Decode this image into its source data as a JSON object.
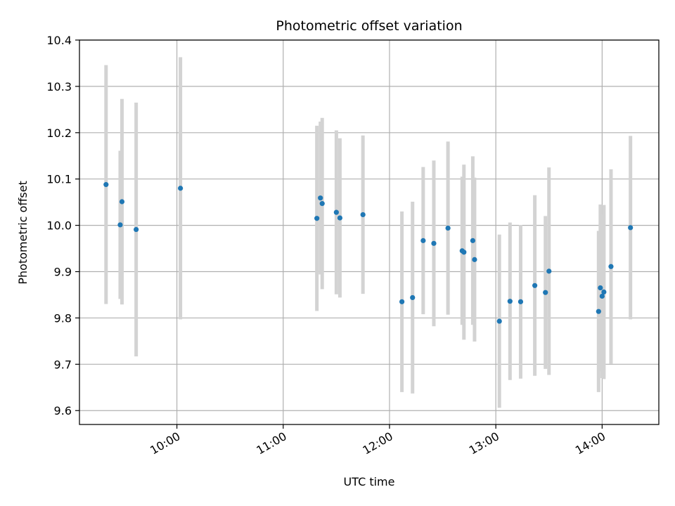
{
  "chart_data": {
    "type": "scatter",
    "title": "Photometric offset variation",
    "xlabel": "UTC time",
    "ylabel": "Photometric offset",
    "x_ticks": [
      "10:00",
      "11:00",
      "12:00",
      "13:00",
      "14:00"
    ],
    "y_ticks": [
      "9.6",
      "9.7",
      "9.8",
      "9.9",
      "10.0",
      "10.1",
      "10.2",
      "10.3",
      "10.4"
    ],
    "xlim": [
      "09:05",
      "14:32"
    ],
    "ylim": [
      9.57,
      10.4
    ],
    "grid": true,
    "colors": {
      "point": "#1f77b4",
      "errorbar": "#d3d3d3",
      "grid": "#b0b0b0"
    },
    "series": [
      {
        "points": [
          {
            "t": "09:20",
            "y": 10.088,
            "err": 0.258
          },
          {
            "t": "09:28",
            "y": 10.001,
            "err": 0.16
          },
          {
            "t": "09:29",
            "y": 10.051,
            "err": 0.222
          },
          {
            "t": "09:37",
            "y": 9.991,
            "err": 0.274
          },
          {
            "t": "10:02",
            "y": 10.08,
            "err": 0.283
          },
          {
            "t": "11:19",
            "y": 10.015,
            "err": 0.2
          },
          {
            "t": "11:21",
            "y": 10.059,
            "err": 0.165
          },
          {
            "t": "11:22",
            "y": 10.047,
            "err": 0.185
          },
          {
            "t": "11:30",
            "y": 10.028,
            "err": 0.177
          },
          {
            "t": "11:32",
            "y": 10.016,
            "err": 0.172
          },
          {
            "t": "11:45",
            "y": 10.023,
            "err": 0.171
          },
          {
            "t": "12:07",
            "y": 9.835,
            "err": 0.195
          },
          {
            "t": "12:13",
            "y": 9.844,
            "err": 0.207
          },
          {
            "t": "12:19",
            "y": 9.967,
            "err": 0.159
          },
          {
            "t": "12:25",
            "y": 9.961,
            "err": 0.179
          },
          {
            "t": "12:33",
            "y": 9.994,
            "err": 0.187
          },
          {
            "t": "12:41",
            "y": 9.945,
            "err": 0.16
          },
          {
            "t": "12:42",
            "y": 9.942,
            "err": 0.189
          },
          {
            "t": "12:47",
            "y": 9.967,
            "err": 0.182
          },
          {
            "t": "12:48",
            "y": 9.926,
            "err": 0.177
          },
          {
            "t": "13:02",
            "y": 9.793,
            "err": 0.187
          },
          {
            "t": "13:08",
            "y": 9.836,
            "err": 0.17
          },
          {
            "t": "13:14",
            "y": 9.835,
            "err": 0.166
          },
          {
            "t": "13:22",
            "y": 9.87,
            "err": 0.195
          },
          {
            "t": "13:28",
            "y": 9.855,
            "err": 0.165
          },
          {
            "t": "13:30",
            "y": 9.901,
            "err": 0.224
          },
          {
            "t": "13:58",
            "y": 9.814,
            "err": 0.174
          },
          {
            "t": "13:59",
            "y": 9.865,
            "err": 0.18
          },
          {
            "t": "14:00",
            "y": 9.847,
            "err": 0.177
          },
          {
            "t": "14:01",
            "y": 9.856,
            "err": 0.188
          },
          {
            "t": "14:05",
            "y": 9.911,
            "err": 0.21
          },
          {
            "t": "14:16",
            "y": 9.995,
            "err": 0.198
          }
        ]
      }
    ]
  }
}
